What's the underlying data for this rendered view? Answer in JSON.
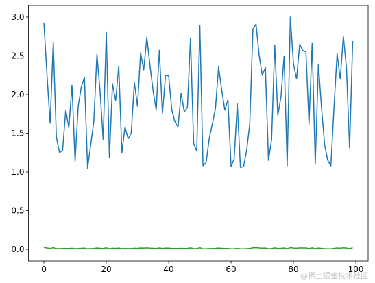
{
  "chart_data": {
    "type": "line",
    "x": [
      0,
      1,
      2,
      3,
      4,
      5,
      6,
      7,
      8,
      9,
      10,
      11,
      12,
      13,
      14,
      15,
      16,
      17,
      18,
      19,
      20,
      21,
      22,
      23,
      24,
      25,
      26,
      27,
      28,
      29,
      30,
      31,
      32,
      33,
      34,
      35,
      36,
      37,
      38,
      39,
      40,
      41,
      42,
      43,
      44,
      45,
      46,
      47,
      48,
      49,
      50,
      51,
      52,
      53,
      54,
      55,
      56,
      57,
      58,
      59,
      60,
      61,
      62,
      63,
      64,
      65,
      66,
      67,
      68,
      69,
      70,
      71,
      72,
      73,
      74,
      75,
      76,
      77,
      78,
      79,
      80,
      81,
      82,
      83,
      84,
      85,
      86,
      87,
      88,
      89,
      90,
      91,
      92,
      93,
      94,
      95,
      96,
      97,
      98,
      99
    ],
    "series": [
      {
        "color": "#1f77b4",
        "values": [
          2.93,
          2.25,
          1.63,
          2.67,
          1.45,
          1.25,
          1.28,
          1.8,
          1.57,
          2.12,
          1.14,
          1.85,
          2.1,
          2.22,
          1.05,
          1.35,
          1.65,
          2.52,
          2.05,
          1.42,
          2.81,
          1.19,
          2.14,
          1.92,
          2.37,
          1.25,
          1.58,
          1.43,
          1.5,
          2.16,
          1.85,
          2.54,
          2.32,
          2.74,
          2.38,
          2.05,
          1.8,
          2.57,
          1.76,
          2.25,
          2.24,
          1.8,
          1.65,
          1.58,
          2.02,
          1.78,
          1.83,
          2.73,
          1.37,
          1.27,
          2.89,
          1.08,
          1.12,
          1.43,
          1.62,
          1.82,
          2.36,
          2.06,
          1.8,
          1.93,
          1.07,
          1.17,
          1.88,
          1.06,
          1.07,
          1.28,
          1.62,
          2.84,
          2.91,
          2.51,
          2.25,
          2.35,
          1.15,
          1.42,
          2.64,
          1.73,
          1.97,
          2.5,
          1.08,
          3.0,
          2.4,
          2.2,
          2.65,
          2.57,
          2.55,
          1.62,
          2.66,
          1.1,
          2.39,
          1.83,
          1.35,
          1.15,
          1.08,
          1.83,
          2.53,
          2.2,
          2.75,
          2.35,
          1.31,
          2.69
        ]
      },
      {
        "color": "#2ca02c",
        "values": [
          0.025,
          0.018,
          0.012,
          0.022,
          0.01,
          0.009,
          0.011,
          0.013,
          0.01,
          0.015,
          0.008,
          0.012,
          0.014,
          0.016,
          0.007,
          0.01,
          0.012,
          0.018,
          0.014,
          0.01,
          0.02,
          0.008,
          0.015,
          0.013,
          0.017,
          0.009,
          0.011,
          0.01,
          0.01,
          0.015,
          0.013,
          0.018,
          0.016,
          0.019,
          0.016,
          0.014,
          0.012,
          0.018,
          0.012,
          0.016,
          0.016,
          0.012,
          0.011,
          0.011,
          0.014,
          0.012,
          0.013,
          0.019,
          0.01,
          0.009,
          0.021,
          0.007,
          0.008,
          0.01,
          0.011,
          0.013,
          0.017,
          0.014,
          0.012,
          0.013,
          0.007,
          0.008,
          0.013,
          0.007,
          0.007,
          0.009,
          0.011,
          0.02,
          0.022,
          0.018,
          0.016,
          0.017,
          0.008,
          0.01,
          0.019,
          0.012,
          0.014,
          0.018,
          0.007,
          0.023,
          0.017,
          0.015,
          0.019,
          0.018,
          0.018,
          0.011,
          0.019,
          0.008,
          0.017,
          0.013,
          0.009,
          0.008,
          0.007,
          0.013,
          0.018,
          0.015,
          0.02,
          0.017,
          0.009,
          0.02
        ]
      }
    ],
    "xlim": [
      -4.95,
      103.95
    ],
    "xticks": [
      0,
      20,
      40,
      60,
      80,
      100
    ],
    "ylim": [
      -0.15,
      3.15
    ],
    "yticks": [
      {
        "value": 0,
        "label": "0.0"
      },
      {
        "value": 0.5,
        "label": "0.5"
      },
      {
        "value": 1,
        "label": "1.0"
      },
      {
        "value": 1.5,
        "label": "1.5"
      },
      {
        "value": 2,
        "label": "2.0"
      },
      {
        "value": 2.5,
        "label": "2.5"
      },
      {
        "value": 3,
        "label": "3.0"
      }
    ],
    "watermark": "@稀土掘金技术社区"
  }
}
